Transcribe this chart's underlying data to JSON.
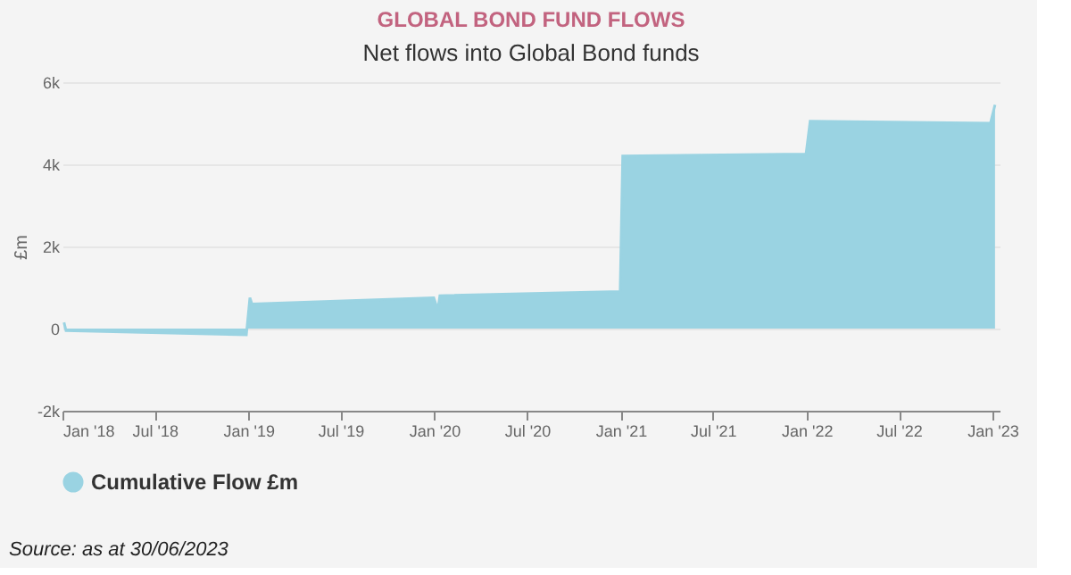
{
  "chart_data": {
    "type": "area",
    "title": "GLOBAL BOND FUND FLOWS",
    "subtitle": "Net flows into Global Bond funds",
    "ylabel": "£m",
    "x": [
      "2018-01-04",
      "2018-01-08",
      "2018-12-28",
      "2019-01-04",
      "2019-01-08",
      "2019-12-31",
      "2020-01-08",
      "2020-01-12",
      "2020-12-31",
      "2021-01-05",
      "2021-12-31",
      "2022-01-08",
      "2022-12-28",
      "2023-01-06"
    ],
    "series": [
      {
        "name": "Cumulative Flow £m",
        "color": "#9ad3e2",
        "values": [
          150,
          -50,
          -150,
          750,
          600,
          750,
          450,
          800,
          900,
          4200,
          4250,
          5050,
          5000,
          5450
        ]
      }
    ],
    "xlim": [
      "2018-01-01",
      "2023-01-15"
    ],
    "xticks": [
      {
        "value": "2018-01-01",
        "label": "Jan '18"
      },
      {
        "value": "2018-07-01",
        "label": "Jul '18"
      },
      {
        "value": "2019-01-01",
        "label": "Jan '19"
      },
      {
        "value": "2019-07-01",
        "label": "Jul '19"
      },
      {
        "value": "2020-01-01",
        "label": "Jan '20"
      },
      {
        "value": "2020-07-01",
        "label": "Jul '20"
      },
      {
        "value": "2021-01-01",
        "label": "Jan '21"
      },
      {
        "value": "2021-07-01",
        "label": "Jul '21"
      },
      {
        "value": "2022-01-01",
        "label": "Jan '22"
      },
      {
        "value": "2022-07-01",
        "label": "Jul '22"
      },
      {
        "value": "2023-01-01",
        "label": "Jan '23"
      }
    ],
    "ylim": [
      -2000,
      6000
    ],
    "yticks": [
      {
        "value": -2000,
        "label": "-2k"
      },
      {
        "value": 0,
        "label": "0"
      },
      {
        "value": 2000,
        "label": "2k"
      },
      {
        "value": 4000,
        "label": "4k"
      },
      {
        "value": 6000,
        "label": "6k"
      }
    ],
    "grid": "y",
    "legend": "bottom",
    "annotations": [
      "Source: as at 30/06/2023"
    ]
  }
}
